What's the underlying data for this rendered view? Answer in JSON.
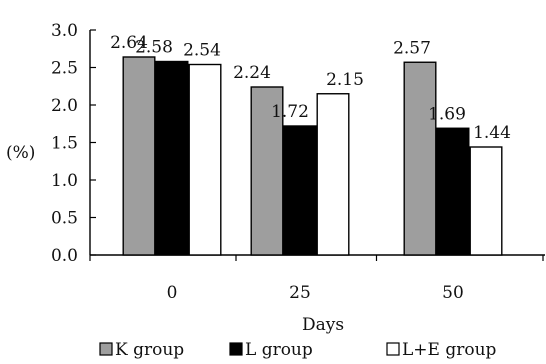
{
  "chart_data": {
    "type": "bar",
    "categories": [
      "0",
      "25",
      "50"
    ],
    "series": [
      {
        "name": "K group",
        "values": [
          2.64,
          2.24,
          2.57
        ],
        "labels": [
          "2.64",
          "2.24",
          "2.57"
        ],
        "color": "#9e9e9e"
      },
      {
        "name": "L group",
        "values": [
          2.58,
          1.72,
          1.69
        ],
        "labels": [
          "2.58",
          "1.72",
          "1.69"
        ],
        "color": "#000000"
      },
      {
        "name": "L+E group",
        "values": [
          2.54,
          2.15,
          1.44
        ],
        "labels": [
          "2.54",
          "2.15",
          "1.44"
        ],
        "color": "#ffffff"
      }
    ],
    "yticks": [
      "0.0",
      "0.5",
      "1.0",
      "1.5",
      "2.0",
      "2.5",
      "3.0"
    ],
    "ylim": [
      0,
      3.0
    ],
    "xlabel": "Days",
    "ylabel": "(%)",
    "grid": false,
    "legend_position": "bottom"
  }
}
